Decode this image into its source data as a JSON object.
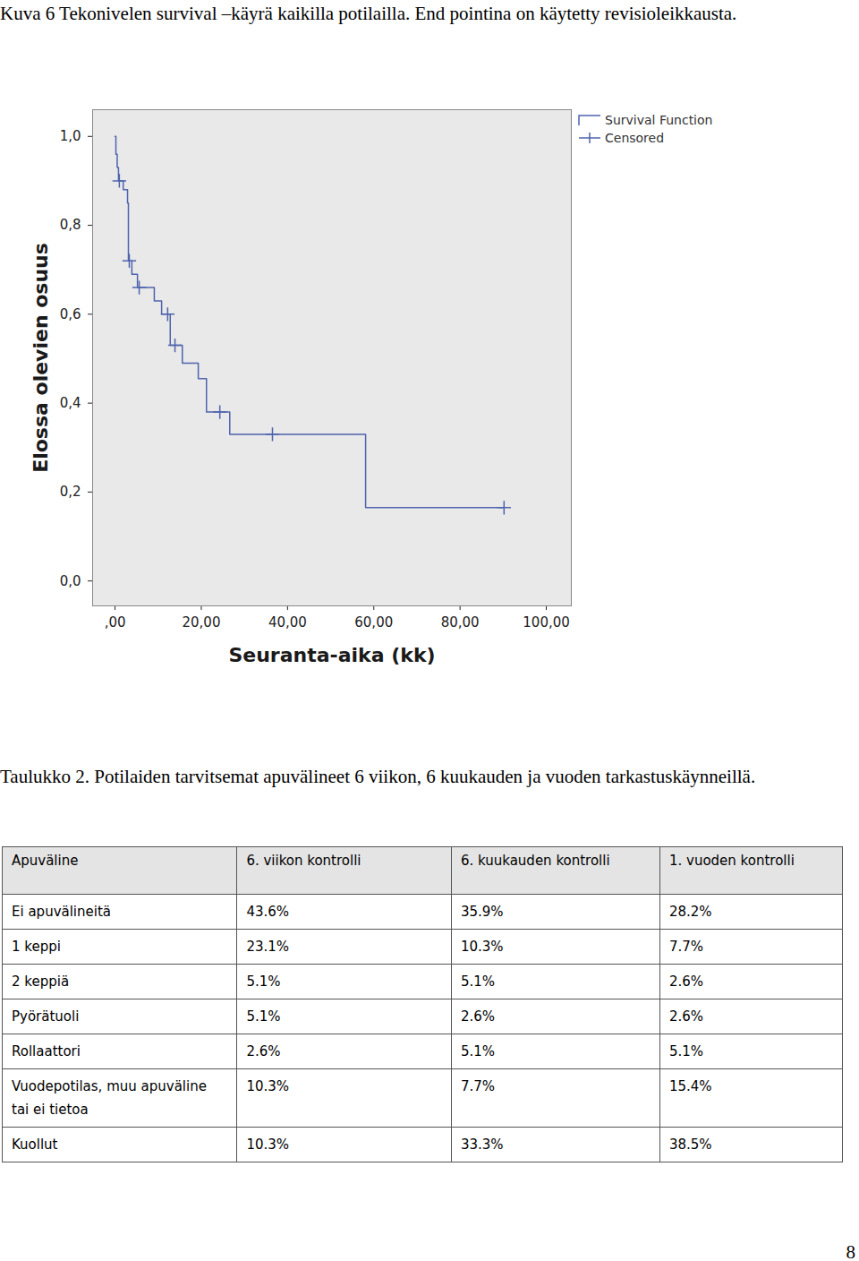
{
  "caption": "Kuva 6 Tekonivelen survival –käyrä kaikilla potilailla. End pointina on käytetty revisioleikkausta.",
  "chart_data": {
    "type": "line",
    "x_label": "Seuranta-aika (kk)",
    "y_label": "Elossa olevien osuus",
    "xlim": [
      -5.2,
      105.8
    ],
    "ylim": [
      -0.056,
      1.06
    ],
    "xticks": [
      {
        "value": 0,
        "label": ",00"
      },
      {
        "value": 20,
        "label": "20,00"
      },
      {
        "value": 40,
        "label": "40,00"
      },
      {
        "value": 60,
        "label": "60,00"
      },
      {
        "value": 80,
        "label": "80,00"
      },
      {
        "value": 100,
        "label": "100,00"
      }
    ],
    "yticks": [
      {
        "value": 0,
        "label": "0,0"
      },
      {
        "value": 0.2,
        "label": "0,2"
      },
      {
        "value": 0.4,
        "label": "0,4"
      },
      {
        "value": 0.6,
        "label": "0,6"
      },
      {
        "value": 0.8,
        "label": "0,8"
      },
      {
        "value": 1,
        "label": "1,0"
      }
    ],
    "grid": false,
    "legend": "top right",
    "series": [
      {
        "name": "Survival Function",
        "type": "line",
        "line_style": "step",
        "color": "#4f64ad",
        "x": [
          0,
          0.2,
          0.5,
          0.8,
          1.9,
          2.9,
          3.1,
          3.9,
          5.2,
          9.1,
          10.8,
          12.8,
          15.6,
          19.3,
          21.2,
          26.6,
          58.1,
          90.2
        ],
        "values": [
          1.0,
          0.96,
          0.93,
          0.9,
          0.88,
          0.85,
          0.72,
          0.69,
          0.66,
          0.63,
          0.6,
          0.53,
          0.49,
          0.455,
          0.38,
          0.33,
          0.165,
          0.165
        ]
      },
      {
        "name": "Censored",
        "type": "scatter",
        "marker": "+",
        "color": "#4f64ad",
        "x": [
          1.0,
          3.3,
          5.6,
          12.2,
          13.9,
          24.3,
          36.5,
          90.2
        ],
        "values": [
          0.9,
          0.72,
          0.66,
          0.6,
          0.53,
          0.38,
          0.33,
          0.165
        ]
      }
    ]
  },
  "table_caption": "Taulukko 2. Potilaiden tarvitsemat apuvälineet 6 viikon, 6 kuukauden ja vuoden tarkastuskäynneillä.",
  "table": {
    "header": [
      "Apuväline",
      "6. viikon kontrolli",
      "6. kuukauden kontrolli",
      "1. vuoden kontrolli"
    ],
    "rows": [
      [
        "Ei apuvälineitä",
        "43.6%",
        "35.9%",
        "28.2%"
      ],
      [
        "1 keppi",
        "23.1%",
        "10.3%",
        "7.7%"
      ],
      [
        "2 keppiä",
        "5.1%",
        "5.1%",
        "2.6%"
      ],
      [
        "Pyörätuoli",
        "5.1%",
        "2.6%",
        "2.6%"
      ],
      [
        "Rollaattori",
        "2.6%",
        "5.1%",
        "5.1%"
      ],
      [
        "Vuodepotilas, muu apuväline tai ei tietoa",
        "10.3%",
        "7.7%",
        "15.4%"
      ],
      [
        "Kuollut",
        "10.3%",
        "33.3%",
        "38.5%"
      ]
    ]
  },
  "page_number": 8
}
